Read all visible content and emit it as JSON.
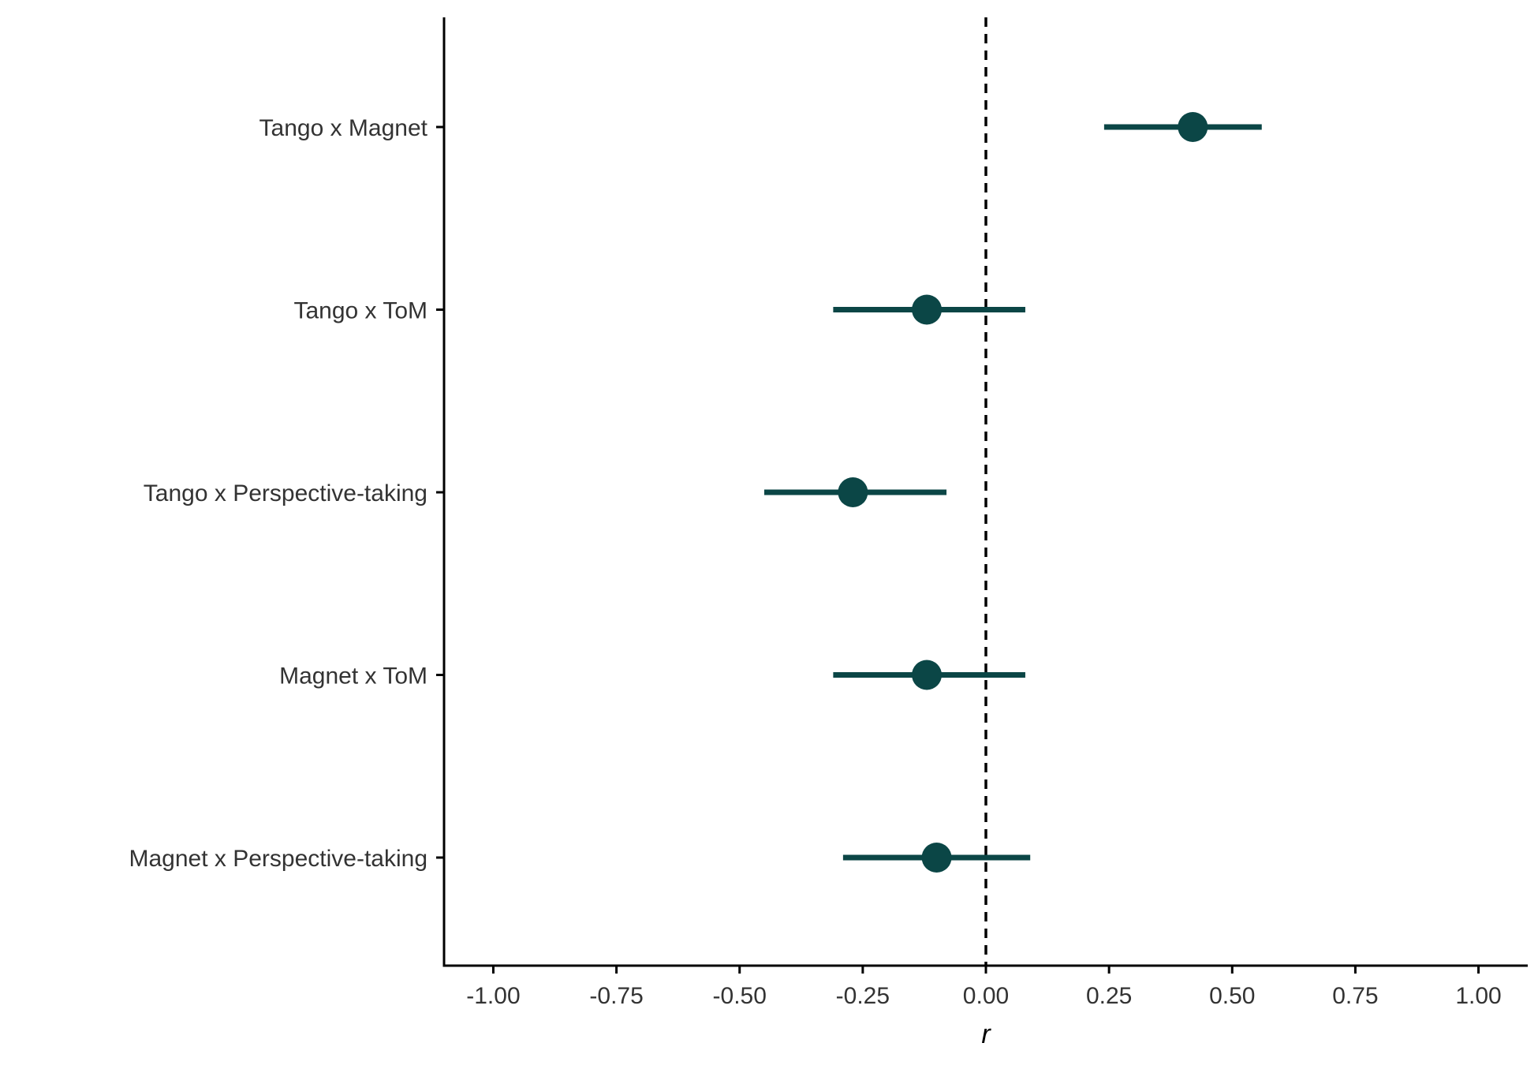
{
  "chart_data": {
    "type": "scatter",
    "subtype": "forest-plot",
    "title": "",
    "xlabel": "r",
    "ylabel": "",
    "xlim": [
      -1.1,
      1.1
    ],
    "x_ticks": [
      -1.0,
      -0.75,
      -0.5,
      -0.25,
      0.0,
      0.25,
      0.5,
      0.75,
      1.0
    ],
    "x_tick_labels": [
      "-1.00",
      "-0.75",
      "-0.50",
      "-0.25",
      "0.00",
      "0.25",
      "0.50",
      "0.75",
      "1.00"
    ],
    "reference_line": {
      "x": 0.0,
      "style": "dashed",
      "color": "#000000"
    },
    "grid": false,
    "point_color": "#0b4646",
    "categories": [
      "Tango x Magnet",
      "Tango x ToM",
      "Tango x Perspective-taking",
      "Magnet x ToM",
      "Magnet x Perspective-taking"
    ],
    "estimates": [
      0.42,
      -0.12,
      -0.27,
      -0.12,
      -0.1
    ],
    "ci_lower": [
      0.24,
      -0.31,
      -0.45,
      -0.31,
      -0.29
    ],
    "ci_upper": [
      0.56,
      0.08,
      -0.08,
      0.08,
      0.09
    ]
  }
}
